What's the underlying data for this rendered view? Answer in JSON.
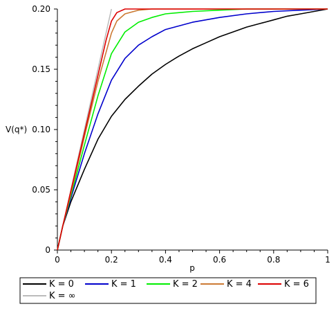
{
  "chart_data": {
    "type": "line",
    "xlabel": "p",
    "ylabel": "V(q*)",
    "xlim": [
      0,
      1
    ],
    "ylim": [
      0,
      0.2
    ],
    "x_ticks": [
      "0",
      "0.2",
      "0.4",
      "0.6",
      "0.8",
      "1"
    ],
    "y_ticks": [
      "0",
      "0.05",
      "0.10",
      "0.15",
      "0.20"
    ],
    "legend_placement": "bottom",
    "series": [
      {
        "name": "K = 0",
        "color": "#000000",
        "x": [
          0,
          0.02,
          0.05,
          0.1,
          0.15,
          0.2,
          0.25,
          0.3,
          0.35,
          0.4,
          0.45,
          0.5,
          0.55,
          0.6,
          0.65,
          0.7,
          0.75,
          0.8,
          0.85,
          0.9,
          0.95,
          1
        ],
        "y": [
          0,
          0.02,
          0.04,
          0.067,
          0.092,
          0.111,
          0.125,
          0.136,
          0.146,
          0.154,
          0.161,
          0.167,
          0.172,
          0.177,
          0.181,
          0.185,
          0.188,
          0.191,
          0.194,
          0.196,
          0.198,
          0.2
        ]
      },
      {
        "name": "K = 1",
        "color": "#0000cc",
        "x": [
          0,
          0.02,
          0.05,
          0.1,
          0.15,
          0.2,
          0.25,
          0.3,
          0.35,
          0.4,
          0.45,
          0.5,
          0.6,
          0.7,
          0.8,
          0.9,
          1
        ],
        "y": [
          0,
          0.02,
          0.043,
          0.08,
          0.113,
          0.141,
          0.159,
          0.17,
          0.177,
          0.183,
          0.186,
          0.189,
          0.193,
          0.196,
          0.198,
          0.199,
          0.2
        ]
      },
      {
        "name": "K = 2",
        "color": "#00ee00",
        "x": [
          0,
          0.02,
          0.05,
          0.1,
          0.15,
          0.2,
          0.25,
          0.3,
          0.35,
          0.4,
          0.5,
          0.6,
          0.7,
          0.8,
          1
        ],
        "y": [
          0,
          0.02,
          0.045,
          0.087,
          0.128,
          0.163,
          0.181,
          0.189,
          0.193,
          0.196,
          0.198,
          0.199,
          0.2,
          0.2,
          0.2
        ]
      },
      {
        "name": "K = 4",
        "color": "#cc7a33",
        "x": [
          0,
          0.02,
          0.05,
          0.1,
          0.15,
          0.2,
          0.22,
          0.25,
          0.3,
          0.35,
          0.4,
          0.5,
          1
        ],
        "y": [
          0,
          0.02,
          0.047,
          0.094,
          0.14,
          0.18,
          0.19,
          0.196,
          0.199,
          0.2,
          0.2,
          0.2,
          0.2
        ],
        "note_hidden": ""
      },
      {
        "name": "K = 6",
        "color": "#dd0000",
        "x": [
          0,
          0.02,
          0.05,
          0.1,
          0.15,
          0.18,
          0.2,
          0.22,
          0.25,
          0.3,
          0.4,
          1
        ],
        "y": [
          0,
          0.02,
          0.049,
          0.097,
          0.145,
          0.174,
          0.19,
          0.197,
          0.2,
          0.2,
          0.2,
          0.2
        ]
      },
      {
        "name": "K = ∞",
        "color": "#bbbbbb",
        "x": [
          0,
          0.2
        ],
        "y": [
          0,
          0.2
        ]
      }
    ]
  }
}
